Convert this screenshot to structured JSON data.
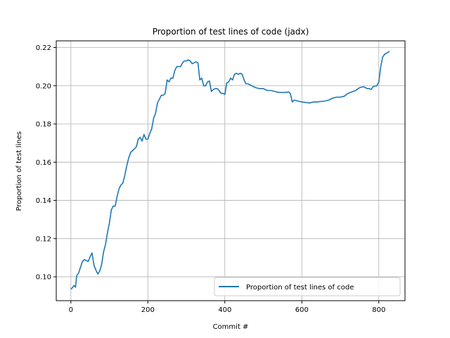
{
  "chart_data": {
    "type": "line",
    "title": "Proportion of test lines of code (jadx)",
    "xlabel": "Commit #",
    "ylabel": "Proportion of test lines",
    "xlim": [
      -38,
      868
    ],
    "ylim": [
      0.0875,
      0.2235
    ],
    "x_ticks": [
      0,
      200,
      400,
      600,
      800
    ],
    "y_ticks": [
      0.1,
      0.12,
      0.14,
      0.16,
      0.18,
      0.2,
      0.22
    ],
    "x_tick_labels": [
      "0",
      "200",
      "400",
      "600",
      "800"
    ],
    "y_tick_labels": [
      "0.10",
      "0.12",
      "0.14",
      "0.16",
      "0.18",
      "0.20",
      "0.22"
    ],
    "grid": true,
    "legend_position": "lower-right",
    "colors": {
      "series": "#1f77b4",
      "grid": "#b0b0b0"
    },
    "series": [
      {
        "name": "Proportion of test lines of code",
        "x": [
          0,
          5,
          8,
          12,
          15,
          20,
          25,
          30,
          35,
          40,
          45,
          50,
          55,
          60,
          65,
          70,
          75,
          80,
          85,
          90,
          95,
          100,
          105,
          110,
          115,
          120,
          125,
          130,
          135,
          140,
          145,
          150,
          155,
          160,
          165,
          170,
          175,
          180,
          185,
          190,
          195,
          200,
          205,
          210,
          215,
          220,
          225,
          230,
          235,
          240,
          245,
          250,
          255,
          260,
          265,
          270,
          275,
          280,
          285,
          290,
          295,
          300,
          305,
          310,
          315,
          320,
          325,
          330,
          335,
          340,
          345,
          350,
          355,
          360,
          365,
          370,
          375,
          380,
          385,
          390,
          395,
          400,
          405,
          410,
          415,
          420,
          425,
          430,
          435,
          440,
          445,
          450,
          455,
          460,
          470,
          480,
          490,
          500,
          510,
          520,
          530,
          540,
          550,
          560,
          565,
          570,
          575,
          580,
          590,
          600,
          610,
          620,
          630,
          640,
          650,
          660,
          670,
          680,
          690,
          700,
          710,
          720,
          730,
          740,
          750,
          760,
          765,
          770,
          775,
          780,
          785,
          790,
          795,
          800,
          805,
          810,
          815,
          820,
          828
        ],
        "y": [
          0.0935,
          0.0945,
          0.0955,
          0.0945,
          0.1005,
          0.102,
          0.105,
          0.108,
          0.109,
          0.1085,
          0.108,
          0.1105,
          0.1125,
          0.106,
          0.1035,
          0.1015,
          0.103,
          0.1065,
          0.113,
          0.117,
          0.123,
          0.128,
          0.135,
          0.137,
          0.137,
          0.142,
          0.146,
          0.148,
          0.149,
          0.153,
          0.158,
          0.162,
          0.165,
          0.166,
          0.167,
          0.168,
          0.172,
          0.173,
          0.171,
          0.1745,
          0.172,
          0.172,
          0.175,
          0.1775,
          0.183,
          0.1855,
          0.191,
          0.193,
          0.195,
          0.195,
          0.196,
          0.203,
          0.202,
          0.204,
          0.204,
          0.208,
          0.21,
          0.21,
          0.21,
          0.212,
          0.213,
          0.213,
          0.2135,
          0.213,
          0.2115,
          0.212,
          0.2125,
          0.212,
          0.203,
          0.204,
          0.2,
          0.2,
          0.202,
          0.2025,
          0.197,
          0.198,
          0.1985,
          0.1985,
          0.1975,
          0.196,
          0.196,
          0.1955,
          0.2015,
          0.202,
          0.204,
          0.203,
          0.206,
          0.2065,
          0.206,
          0.2065,
          0.206,
          0.203,
          0.201,
          0.201,
          0.2,
          0.199,
          0.1985,
          0.1985,
          0.1975,
          0.1975,
          0.197,
          0.1965,
          0.1965,
          0.1965,
          0.1968,
          0.196,
          0.1915,
          0.1925,
          0.192,
          0.1915,
          0.1912,
          0.191,
          0.1915,
          0.1915,
          0.1918,
          0.192,
          0.1925,
          0.1935,
          0.194,
          0.194,
          0.1945,
          0.196,
          0.1968,
          0.1975,
          0.199,
          0.1995,
          0.199,
          0.1985,
          0.1985,
          0.198,
          0.1995,
          0.1998,
          0.2,
          0.202,
          0.21,
          0.215,
          0.2165,
          0.217,
          0.218
        ]
      }
    ]
  }
}
